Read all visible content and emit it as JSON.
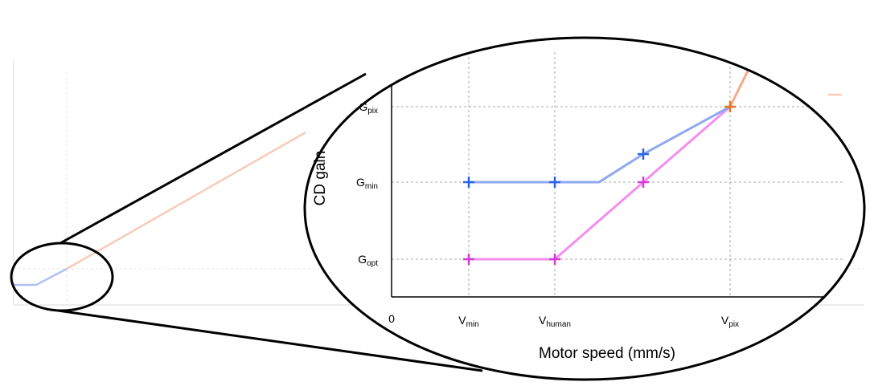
{
  "y_axis": {
    "label": "CD gain",
    "ticks": [
      {
        "base": "G",
        "sub": "pix"
      },
      {
        "base": "G",
        "sub": "min"
      },
      {
        "base": "G",
        "sub": "opt"
      }
    ]
  },
  "x_axis": {
    "label": "Motor speed (mm/s)",
    "origin": "0",
    "ticks": [
      {
        "base": "V",
        "sub": "min"
      },
      {
        "base": "V",
        "sub": "human"
      },
      {
        "base": "V",
        "sub": "pix"
      }
    ]
  }
}
